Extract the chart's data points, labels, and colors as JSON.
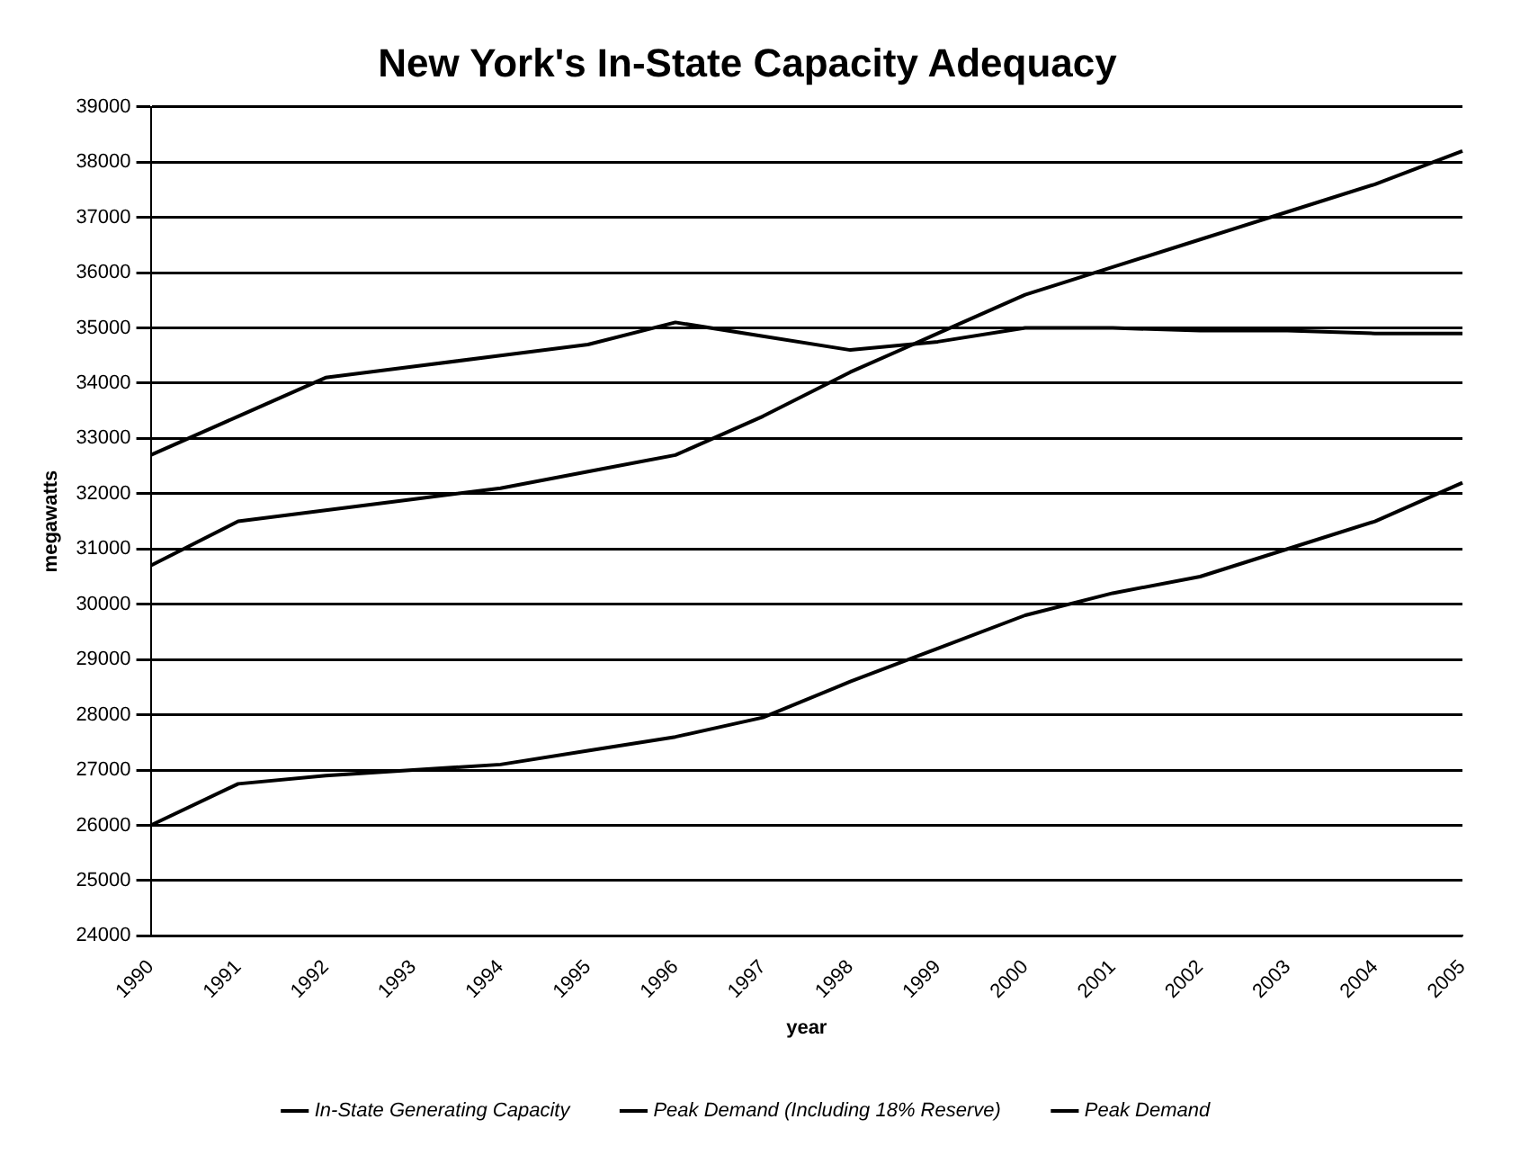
{
  "chart_data": {
    "type": "line",
    "title": "New York's In-State Capacity Adequacy",
    "xlabel": "year",
    "ylabel": "megawatts",
    "categories": [
      "1990",
      "1991",
      "1992",
      "1993",
      "1994",
      "1995",
      "1996",
      "1997",
      "1998",
      "1999",
      "2000",
      "2001",
      "2002",
      "2003",
      "2004",
      "2005"
    ],
    "series": [
      {
        "name": "In-State Generating Capacity",
        "color": "#000000",
        "values": [
          32700,
          33400,
          34100,
          34300,
          34500,
          34700,
          35100,
          34850,
          34600,
          34750,
          35000,
          35000,
          34950,
          34950,
          34900,
          34900
        ]
      },
      {
        "name": "Peak Demand (Including 18% Reserve)",
        "color": "#000000",
        "values": [
          30700,
          31500,
          31700,
          31900,
          32100,
          32400,
          32700,
          33400,
          34200,
          34900,
          35600,
          36100,
          36600,
          37100,
          37600,
          38200
        ]
      },
      {
        "name": "Peak Demand",
        "color": "#000000",
        "values": [
          26000,
          26750,
          26900,
          27000,
          27100,
          27350,
          27600,
          27950,
          28600,
          29200,
          29800,
          30200,
          30500,
          31000,
          31500,
          32200
        ]
      }
    ],
    "ylim": [
      24000,
      39000
    ],
    "yticks": [
      24000,
      25000,
      26000,
      27000,
      28000,
      29000,
      30000,
      31000,
      32000,
      33000,
      34000,
      35000,
      36000,
      37000,
      38000,
      39000
    ],
    "grid": "y",
    "legend": "bottom",
    "marker": "none",
    "line_style": "solid"
  }
}
